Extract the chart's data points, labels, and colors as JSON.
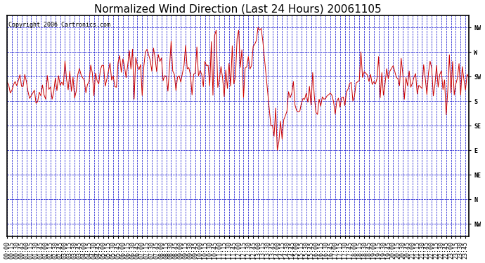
{
  "title": "Normalized Wind Direction (Last 24 Hours) 20061105",
  "copyright_text": "Copyright 2006 Cartronics.com",
  "background_color": "#ffffff",
  "plot_bg_color": "#ffffff",
  "line_color": "#cc0000",
  "grid_color": "#0000cc",
  "border_color": "#000000",
  "ytick_labels": [
    "NW",
    "N",
    "NE",
    "E",
    "SE",
    "S",
    "SW",
    "W",
    "NW"
  ],
  "ytick_values": [
    -45,
    0,
    45,
    90,
    135,
    180,
    225,
    270,
    315
  ],
  "ylim": [
    -67.5,
    337.5
  ],
  "title_fontsize": 11,
  "tick_fontsize": 6,
  "ylabel_fontsize": 8,
  "copyright_fontsize": 6,
  "figsize": [
    6.9,
    3.75
  ],
  "dpi": 100
}
